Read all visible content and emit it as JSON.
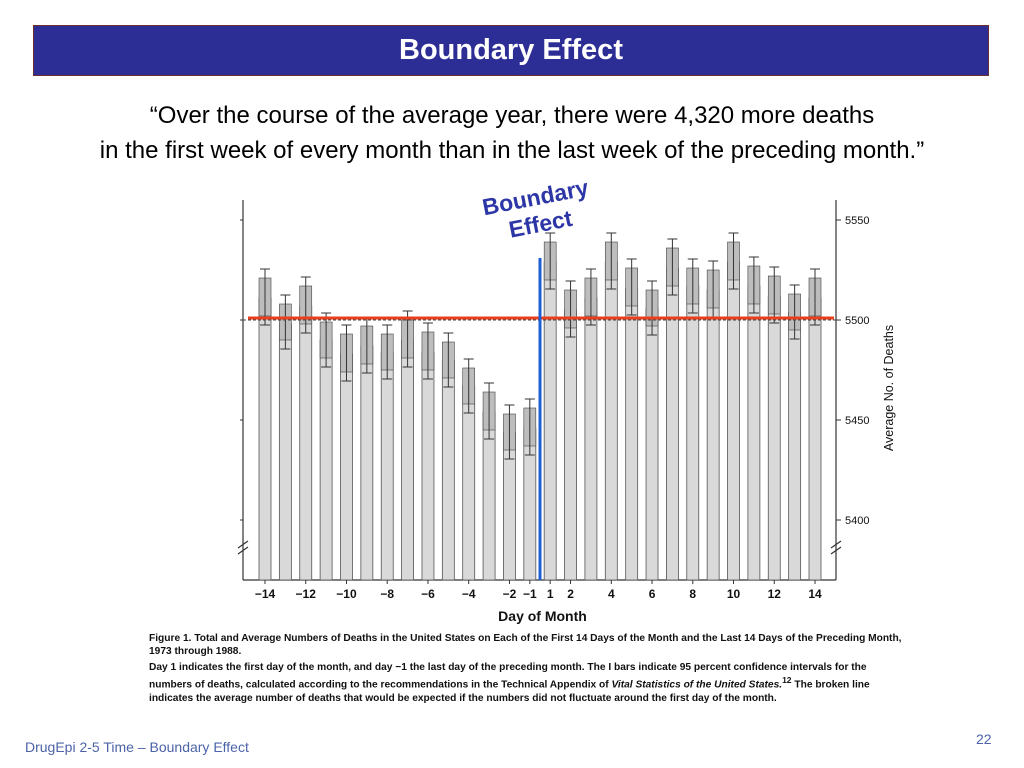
{
  "slide": {
    "title": "Boundary Effect",
    "quote_line1": "“Over the course of the average year, there were 4,320 more deaths",
    "quote_line2": "in the first week of every month than in the last week of the preceding month.”",
    "callout_line1": "Boundary",
    "callout_line2": "Effect",
    "footer": "DrugEpi 2-5  Time – Boundary Effect",
    "page_number": "22"
  },
  "caption": {
    "figure_label": "Figure 1.",
    "line1": "Total and Average Numbers of Deaths in the United States on Each of the First 14 Days of the Month and the Last 14 Days of the Preceding Month, 1973 through 1988.",
    "line2_a": "Day 1 indicates the first day of the month, and day −1 the last day of the preceding month. The I bars indicate 95 percent confidence intervals for the numbers of deaths, calculated according to the recommendations in the Technical Appendix of ",
    "line2_italic": "Vital Statistics of the United States.",
    "line2_sup": "12",
    "line2_b": " The broken line indicates the average number of deaths that would be expected if the numbers did not fluctuate around the first day of the month."
  },
  "colors": {
    "title_bg": "#2d2d96",
    "bar_fill": "#d9d9d9",
    "average_line": "#e8401c",
    "boundary_line": "#1f5fd6",
    "callout_text": "#2d36a6"
  },
  "chart_data": {
    "type": "bar",
    "xlabel": "Day of Month",
    "ylabel": "Average No. of Deaths",
    "ylim": [
      5370,
      5560
    ],
    "y_ticks": [
      5400,
      5450,
      5500,
      5550
    ],
    "x_tick_labels": [
      "−14",
      "−12",
      "−10",
      "−8",
      "−6",
      "−4",
      "−2",
      "−1",
      "1",
      "2",
      "4",
      "6",
      "8",
      "10",
      "12",
      "14"
    ],
    "categories": [
      "−14",
      "−13",
      "−12",
      "−11",
      "−10",
      "−9",
      "−8",
      "−7",
      "−6",
      "−5",
      "−4",
      "−3",
      "−2",
      "−1",
      "1",
      "2",
      "3",
      "4",
      "5",
      "6",
      "7",
      "8",
      "9",
      "10",
      "11",
      "12",
      "13",
      "14"
    ],
    "values": [
      5511,
      5498,
      5507,
      5490,
      5483,
      5487,
      5484,
      5490,
      5484,
      5480,
      5467,
      5454,
      5444,
      5446,
      5529,
      5505,
      5511,
      5529,
      5516,
      5506,
      5526,
      5517,
      5515,
      5529,
      5517,
      5512,
      5504,
      5511
    ],
    "ci_lower": [
      5502,
      5490,
      5498,
      5481,
      5474,
      5478,
      5475,
      5481,
      5475,
      5471,
      5458,
      5445,
      5435,
      5437,
      5520,
      5496,
      5502,
      5520,
      5507,
      5497,
      5517,
      5508,
      5506,
      5520,
      5508,
      5503,
      5495,
      5502
    ],
    "ci_upper": [
      5521,
      5508,
      5517,
      5499,
      5493,
      5497,
      5493,
      5500,
      5494,
      5489,
      5476,
      5464,
      5453,
      5456,
      5539,
      5515,
      5521,
      5539,
      5526,
      5515,
      5536,
      5526,
      5525,
      5539,
      5527,
      5522,
      5513,
      5521
    ],
    "expected_average": 5501,
    "boundary_between": [
      "−1",
      "1"
    ]
  }
}
